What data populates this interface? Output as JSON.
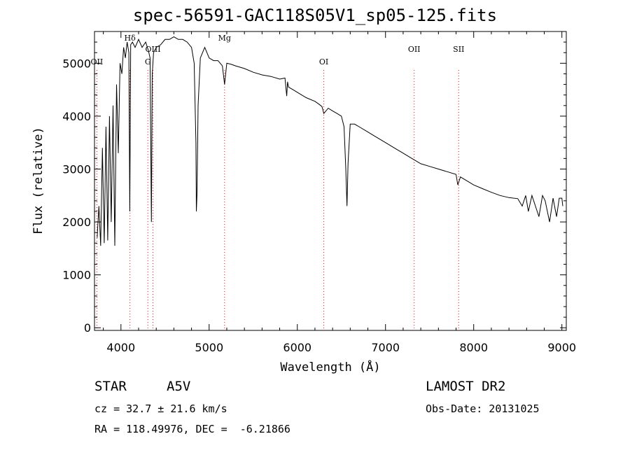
{
  "title": "spec-56591-GAC118S05V1_sp05-125.fits",
  "info": {
    "class_label": "STAR",
    "subclass": "A5V",
    "survey": "LAMOST DR2",
    "redshift": "cz = 32.7 ± 21.6 km/s",
    "obs_date": "Obs-Date: 20131025",
    "coords": "RA = 118.49976, DEC =  -6.21866"
  },
  "chart_data": {
    "type": "line",
    "title": "spec-56591-GAC118S05V1_sp05-125.fits",
    "xlabel": "Wavelength (Å)",
    "ylabel": "Flux (relative)",
    "xlim": [
      3700,
      9050
    ],
    "ylim": [
      -50,
      5600
    ],
    "xticks": [
      4000,
      5000,
      6000,
      7000,
      8000,
      9000
    ],
    "yticks": [
      0,
      1000,
      2000,
      3000,
      4000,
      5000
    ],
    "grid": false,
    "colors": {
      "line": "#000000",
      "marker": "#ff0000"
    },
    "lines": [
      {
        "label": "OII",
        "x": 3727
      },
      {
        "label": "Hδ",
        "x": 4102
      },
      {
        "label": "G",
        "x": 4305
      },
      {
        "label": "OIII",
        "x": 4363
      },
      {
        "label": "Mg",
        "x": 5175
      },
      {
        "label": "OI",
        "x": 6300
      },
      {
        "label": "OII",
        "x": 7325
      },
      {
        "label": "SII",
        "x": 7830
      }
    ],
    "series": [
      {
        "x": [
          3730,
          3750,
          3770,
          3790,
          3810,
          3830,
          3850,
          3870,
          3890,
          3910,
          3930,
          3950,
          3970,
          3990,
          4010,
          4030,
          4050,
          4070,
          4090,
          4100,
          4110,
          4130,
          4160,
          4200,
          4240,
          4280,
          4310,
          4330,
          4345,
          4355,
          4370,
          4400,
          4450,
          4500,
          4550,
          4600,
          4650,
          4700,
          4750,
          4800,
          4830,
          4850,
          4855,
          4862,
          4875,
          4900,
          4950,
          5000,
          5050,
          5100,
          5150,
          5175,
          5200,
          5250,
          5300,
          5400,
          5500,
          5600,
          5700,
          5800,
          5860,
          5880,
          5889,
          5900,
          5950,
          6000,
          6100,
          6200,
          6250,
          6280,
          6300,
          6350,
          6400,
          6450,
          6500,
          6530,
          6550,
          6563,
          6575,
          6600,
          6650,
          6700,
          6800,
          6900,
          7000,
          7100,
          7200,
          7300,
          7400,
          7500,
          7600,
          7700,
          7800,
          7820,
          7850,
          7900,
          8000,
          8100,
          8200,
          8300,
          8400,
          8500,
          8550,
          8590,
          8620,
          8660,
          8700,
          8740,
          8780,
          8810,
          8860,
          8900,
          8940,
          8970,
          9000,
          9010
        ],
        "values": [
          1700,
          2300,
          1550,
          3400,
          1600,
          3800,
          1650,
          4000,
          2000,
          4200,
          1550,
          4600,
          3300,
          5000,
          4800,
          5300,
          5100,
          5400,
          5200,
          2200,
          5350,
          5400,
          5300,
          5450,
          5300,
          5400,
          5250,
          5100,
          2000,
          4800,
          5200,
          5300,
          5350,
          5450,
          5450,
          5500,
          5450,
          5450,
          5400,
          5300,
          5000,
          3500,
          2200,
          2500,
          4200,
          5100,
          5300,
          5100,
          5050,
          5050,
          4950,
          4600,
          5000,
          4980,
          4950,
          4900,
          4830,
          4780,
          4750,
          4700,
          4720,
          4380,
          4650,
          4550,
          4500,
          4450,
          4350,
          4280,
          4220,
          4180,
          4050,
          4150,
          4100,
          4050,
          4000,
          3800,
          3000,
          2300,
          3100,
          3850,
          3850,
          3800,
          3700,
          3600,
          3500,
          3400,
          3300,
          3200,
          3100,
          3050,
          3000,
          2950,
          2900,
          2700,
          2850,
          2800,
          2700,
          2630,
          2560,
          2500,
          2460,
          2440,
          2300,
          2500,
          2200,
          2500,
          2300,
          2100,
          2500,
          2400,
          2000,
          2450,
          2100,
          2450,
          2450,
          2300
        ]
      }
    ]
  }
}
